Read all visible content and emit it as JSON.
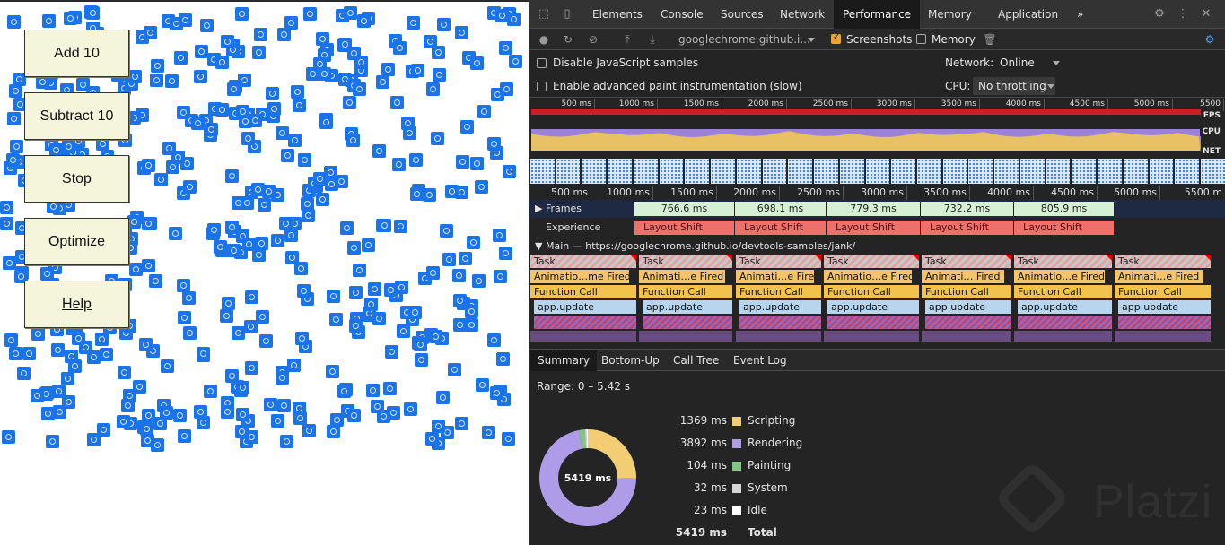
{
  "demo": {
    "buttons": [
      {
        "name": "add-10-button",
        "label": "Add 10",
        "top": 31
      },
      {
        "name": "subtract-10-button",
        "label": "Subtract 10",
        "top": 101
      },
      {
        "name": "stop-button",
        "label": "Stop",
        "top": 171
      },
      {
        "name": "optimize-button",
        "label": "Optimize",
        "top": 241
      },
      {
        "name": "help-link-button",
        "label": "Help",
        "top": 311
      }
    ]
  },
  "devtools": {
    "tabs": [
      "Elements",
      "Console",
      "Sources",
      "Network",
      "Performance",
      "Memory",
      "Application"
    ],
    "active_tab": "Performance",
    "more_tabs": "»",
    "toolbar": {
      "url": "googlechrome.github.i...",
      "screenshots_label": "Screenshots",
      "screenshots_checked": true,
      "memory_label": "Memory",
      "memory_checked": false
    },
    "settings": {
      "disable_js_samples": "Disable JavaScript samples",
      "advanced_paint": "Enable advanced paint instrumentation (slow)",
      "network_label": "Network:",
      "network_value": "Online",
      "cpu_label": "CPU:",
      "cpu_value": "No throttling"
    },
    "overview": {
      "ticks": [
        "500 ms",
        "1000 ms",
        "1500 ms",
        "2000 ms",
        "2500 ms",
        "3000 ms",
        "3500 ms",
        "4000 ms",
        "4500 ms",
        "5000 ms",
        "5500"
      ],
      "fps_tag": "FPS",
      "cpu_tag": "CPU",
      "net_tag": "NET"
    },
    "timeline": {
      "ticks": [
        "500 ms",
        "1000 ms",
        "1500 ms",
        "2000 ms",
        "2500 ms",
        "3000 ms",
        "3500 ms",
        "4000 ms",
        "4500 ms",
        "5000 ms",
        "5500 m"
      ],
      "frames_label": "Frames",
      "frames": [
        "766.6 ms",
        "698.1 ms",
        "779.3 ms",
        "732.2 ms",
        "805.9 ms"
      ],
      "experience_label": "Experience",
      "layout_shift": "Layout Shift",
      "main_label": "Main — https://googlechrome.github.io/devtools-samples/jank/",
      "task": "Task",
      "anim_labels": [
        "Animatio…me Fired",
        "Animati…e Fired",
        "Animati…e Fired",
        "Animatio…e Fired",
        "Animati… Fired",
        "Animatio…e Fired",
        "Animati…e Fired"
      ],
      "func": "Function Call",
      "update": "app.update"
    },
    "bottom_tabs": [
      "Summary",
      "Bottom-Up",
      "Call Tree",
      "Event Log"
    ],
    "active_bottom_tab": "Summary",
    "summary": {
      "range": "Range: 0 – 5.42 s",
      "total_center": "5419 ms",
      "rows": [
        {
          "value": "1369 ms",
          "name": "Scripting",
          "ms": 1369,
          "color": "#f2cd74"
        },
        {
          "value": "3892 ms",
          "name": "Rendering",
          "ms": 3892,
          "color": "#af9ce8"
        },
        {
          "value": "104 ms",
          "name": "Painting",
          "ms": 104,
          "color": "#81c784"
        },
        {
          "value": "32 ms",
          "name": "System",
          "ms": 32,
          "color": "#d6d6d6"
        },
        {
          "value": "23 ms",
          "name": "Idle",
          "ms": 23,
          "color": "#ffffff"
        }
      ],
      "total": {
        "value": "5419 ms",
        "name": "Total"
      }
    },
    "watermark": "Platzi"
  }
}
